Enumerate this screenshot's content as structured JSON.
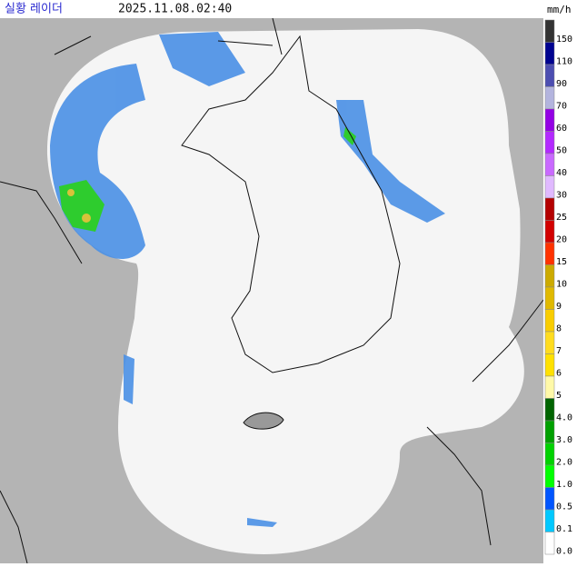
{
  "header": {
    "title": "실황 레이더",
    "time": "2025.11.08.02:40",
    "unit": "mm/h"
  },
  "legend": [
    {
      "label": "150",
      "color": "#333333"
    },
    {
      "label": "110",
      "color": "#000390"
    },
    {
      "label": "90",
      "color": "#4c4eb1"
    },
    {
      "label": "70",
      "color": "#b3b4de"
    },
    {
      "label": "60",
      "color": "#9300e4"
    },
    {
      "label": "50",
      "color": "#b329ff"
    },
    {
      "label": "40",
      "color": "#c969ff"
    },
    {
      "label": "30",
      "color": "#e0b9ff"
    },
    {
      "label": "25",
      "color": "#b40000"
    },
    {
      "label": "20",
      "color": "#d20000"
    },
    {
      "label": "15",
      "color": "#ff3200"
    },
    {
      "label": "10",
      "color": "#ccaa00"
    },
    {
      "label": "9",
      "color": "#e0b900"
    },
    {
      "label": "8",
      "color": "#f9cd00"
    },
    {
      "label": "7",
      "color": "#ffdc1f"
    },
    {
      "label": "6",
      "color": "#ffe100"
    },
    {
      "label": "5",
      "color": "#fff9a8"
    },
    {
      "label": "4.0",
      "color": "#006400"
    },
    {
      "label": "3.0",
      "color": "#00a000"
    },
    {
      "label": "2.0",
      "color": "#00d200"
    },
    {
      "label": "1.0",
      "color": "#00ff00"
    },
    {
      "label": "0.5",
      "color": "#0055ff"
    },
    {
      "label": "0.1",
      "color": "#00c8ff"
    },
    {
      "label": "0.0",
      "color": "#ffffff"
    }
  ]
}
